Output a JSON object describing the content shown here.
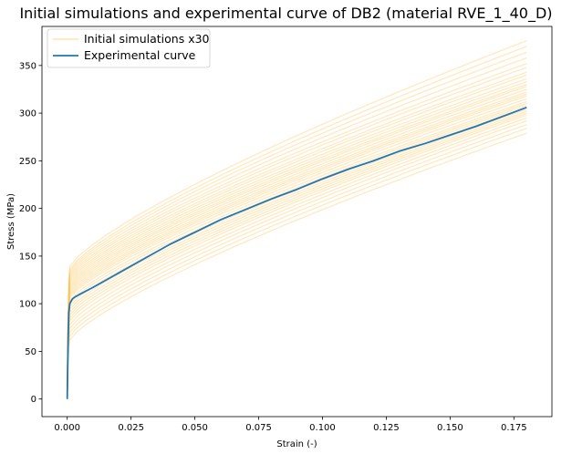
{
  "chart_data": {
    "type": "line",
    "title": "Initial simulations and experimental curve of DB2 (material RVE_1_40_D)",
    "xlabel": "Strain (-)",
    "ylabel": "Stress (MPa)",
    "xlim": [
      -0.0099,
      0.1899
    ],
    "ylim": [
      -18.5,
      391
    ],
    "xticks": [
      0.0,
      0.025,
      0.05,
      0.075,
      0.1,
      0.125,
      0.15,
      0.175
    ],
    "xtick_labels": [
      "0.000",
      "0.025",
      "0.050",
      "0.075",
      "0.100",
      "0.125",
      "0.150",
      "0.175"
    ],
    "yticks": [
      0,
      50,
      100,
      150,
      200,
      250,
      300,
      350
    ],
    "ytick_labels": [
      "0",
      "50",
      "100",
      "150",
      "200",
      "250",
      "300",
      "350"
    ],
    "grid": false,
    "legend_position": "top-left",
    "legend": [
      {
        "label": "Initial simulations x30",
        "color": "#ffc04d"
      },
      {
        "label": "Experimental curve",
        "color": "#1f77b4"
      }
    ],
    "experimental": {
      "name": "Experimental curve",
      "color": "#1f77b4",
      "x": [
        0.0,
        0.0003,
        0.0006,
        0.001,
        0.002,
        0.003,
        0.005,
        0.01,
        0.02,
        0.03,
        0.04,
        0.05,
        0.06,
        0.07,
        0.08,
        0.09,
        0.1,
        0.11,
        0.12,
        0.13,
        0.14,
        0.15,
        0.16,
        0.17,
        0.18
      ],
      "y": [
        0,
        55,
        90,
        100,
        105,
        107,
        110,
        117,
        132,
        147,
        162,
        175,
        188,
        199,
        210,
        220,
        231,
        241,
        250,
        260,
        268,
        277,
        286,
        296,
        306
      ]
    },
    "simulations": {
      "name": "Initial simulations x30",
      "color": "#ffc04d",
      "count": 30,
      "x_end": 0.18,
      "yield_stress": [
        62,
        66,
        70,
        74,
        78,
        82,
        85,
        88,
        91,
        94,
        97,
        100,
        103,
        106,
        108,
        110,
        112,
        114,
        116,
        118,
        120,
        122,
        124,
        126,
        128,
        130,
        132,
        134,
        136,
        139
      ],
      "final_stress": [
        279,
        284,
        288,
        292,
        295,
        298,
        300,
        302,
        304,
        306,
        308,
        310,
        312,
        315,
        318,
        320,
        322,
        325,
        328,
        330,
        333,
        336,
        340,
        343,
        348,
        352,
        358,
        364,
        370,
        376
      ]
    }
  }
}
